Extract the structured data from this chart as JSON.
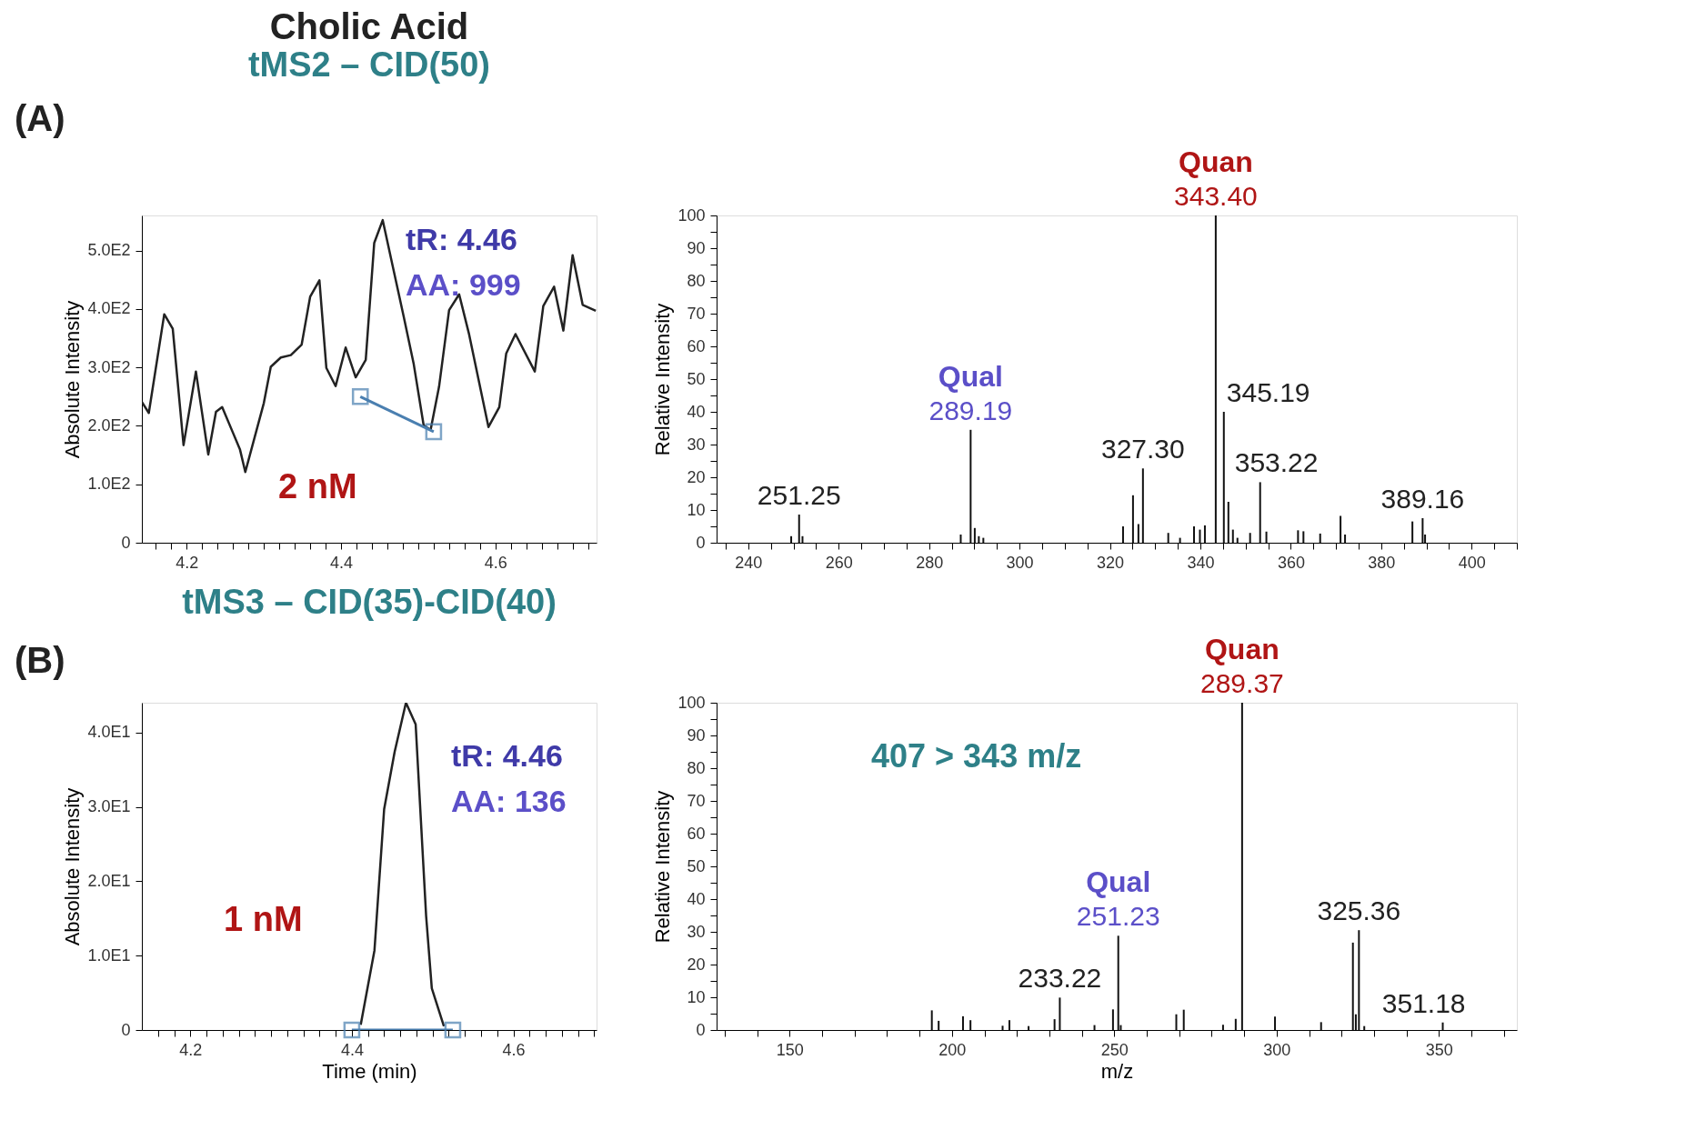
{
  "chart_data": [
    {
      "type": "line",
      "title": "Cholic Acid",
      "subtitle": "tMS2 – CID(50)",
      "ylabel": "Absolute Intensity",
      "annotations": [
        "(A)",
        "tR: 4.46",
        "AA: 999",
        "2 nM"
      ],
      "xlim": [
        4.142,
        4.731
      ],
      "ylim": [
        0,
        560
      ],
      "xticks": [
        {
          "value": 4.16,
          "label": null
        },
        {
          "value": 4.18,
          "label": null
        },
        4.2,
        {
          "value": 4.22,
          "label": null
        },
        {
          "value": 4.24,
          "label": null
        },
        {
          "value": 4.26,
          "label": null
        },
        {
          "value": 4.28,
          "label": null
        },
        {
          "value": 4.3,
          "label": null
        },
        {
          "value": 4.32,
          "label": null
        },
        {
          "value": 4.34,
          "label": null
        },
        {
          "value": 4.36,
          "label": null
        },
        {
          "value": 4.38,
          "label": null
        },
        4.4,
        {
          "value": 4.42,
          "label": null
        },
        {
          "value": 4.44,
          "label": null
        },
        {
          "value": 4.46,
          "label": null
        },
        {
          "value": 4.48,
          "label": null
        },
        {
          "value": 4.5,
          "label": null
        },
        {
          "value": 4.52,
          "label": null
        },
        {
          "value": 4.54,
          "label": null
        },
        {
          "value": 4.56,
          "label": null
        },
        {
          "value": 4.58,
          "label": null
        },
        4.6,
        {
          "value": 4.62,
          "label": null
        },
        {
          "value": 4.64,
          "label": null
        },
        {
          "value": 4.66,
          "label": null
        },
        {
          "value": 4.68,
          "label": null
        },
        {
          "value": 4.7,
          "label": null
        },
        {
          "value": 4.72,
          "label": null
        }
      ],
      "yticks": [
        0,
        {
          "value": 100,
          "label": "1.0E2"
        },
        {
          "value": 200,
          "label": "2.0E2"
        },
        {
          "value": 300,
          "label": "3.0E2"
        },
        {
          "value": 400,
          "label": "4.0E2"
        },
        {
          "value": 500,
          "label": "5.0E2"
        }
      ],
      "grid": false,
      "series": [
        {
          "color": "#222222",
          "x": [
            4.142,
            4.151,
            4.171,
            4.182,
            4.196,
            4.212,
            4.228,
            4.238,
            4.246,
            4.269,
            4.276,
            4.3,
            4.309,
            4.322,
            4.335,
            4.349,
            4.36,
            4.372,
            4.381,
            4.393,
            4.406,
            4.419,
            4.432,
            4.443,
            4.454,
            4.467,
            4.481,
            4.494,
            4.507,
            4.516,
            4.527,
            4.54,
            4.553,
            4.566,
            4.591,
            4.605,
            4.614,
            4.626,
            4.651,
            4.662,
            4.676,
            4.688,
            4.7,
            4.713,
            4.73
          ],
          "values": [
            241,
            222,
            391,
            366,
            167,
            293,
            151,
            224,
            232,
            160,
            121,
            239,
            301,
            317,
            321,
            339,
            421,
            449,
            299,
            268,
            334,
            283,
            313,
            513,
            552,
            473,
            388,
            307,
            201,
            193,
            267,
            398,
            425,
            356,
            198,
            232,
            324,
            357,
            293,
            405,
            438,
            363,
            492,
            407,
            397
          ]
        },
        {
          "color": "#4a7fb0",
          "marker": "square",
          "x": [
            4.425,
            4.52
          ],
          "values": [
            250,
            190
          ]
        }
      ]
    },
    {
      "type": "bar",
      "ylabel": "Relative Intensity",
      "annotations": [
        {
          "text": "Quan",
          "x": 343.4,
          "y": 100
        },
        {
          "text": "343.40",
          "x": 343.4,
          "y": 100
        },
        {
          "text": "Qual",
          "x": 289.19,
          "y": 34.5
        },
        {
          "text": "289.19",
          "x": 289.19,
          "y": 34.5
        },
        {
          "text": "251.25",
          "x": 251.25,
          "y": 8.6
        },
        {
          "text": "327.30",
          "x": 327.3,
          "y": 22.7
        },
        {
          "text": "345.19",
          "x": 345.19,
          "y": 40
        },
        {
          "text": "353.22",
          "x": 353.22,
          "y": 18.5
        },
        {
          "text": "389.16",
          "x": 389.16,
          "y": 7.5
        }
      ],
      "xlim": [
        233,
        410
      ],
      "ylim": [
        0,
        100
      ],
      "xticks": [
        {
          "value": 235,
          "label": null
        },
        240,
        {
          "value": 245,
          "label": null
        },
        {
          "value": 250,
          "label": null
        },
        {
          "value": 255,
          "label": null
        },
        260,
        {
          "value": 265,
          "label": null
        },
        {
          "value": 270,
          "label": null
        },
        {
          "value": 275,
          "label": null
        },
        280,
        {
          "value": 285,
          "label": null
        },
        {
          "value": 290,
          "label": null
        },
        {
          "value": 295,
          "label": null
        },
        300,
        {
          "value": 305,
          "label": null
        },
        {
          "value": 310,
          "label": null
        },
        {
          "value": 315,
          "label": null
        },
        320,
        {
          "value": 325,
          "label": null
        },
        {
          "value": 330,
          "label": null
        },
        {
          "value": 335,
          "label": null
        },
        340,
        {
          "value": 345,
          "label": null
        },
        {
          "value": 350,
          "label": null
        },
        {
          "value": 355,
          "label": null
        },
        360,
        {
          "value": 365,
          "label": null
        },
        {
          "value": 370,
          "label": null
        },
        {
          "value": 375,
          "label": null
        },
        380,
        {
          "value": 385,
          "label": null
        },
        {
          "value": 390,
          "label": null
        },
        {
          "value": 395,
          "label": null
        },
        400,
        {
          "value": 405,
          "label": null
        },
        {
          "value": 410,
          "label": null
        }
      ],
      "yticks": [
        0,
        {
          "value": 5,
          "label": null
        },
        10,
        {
          "value": 15,
          "label": null
        },
        20,
        {
          "value": 25,
          "label": null
        },
        30,
        {
          "value": 35,
          "label": null
        },
        40,
        {
          "value": 45,
          "label": null
        },
        50,
        {
          "value": 55,
          "label": null
        },
        60,
        {
          "value": 65,
          "label": null
        },
        70,
        {
          "value": 75,
          "label": null
        },
        80,
        {
          "value": 85,
          "label": null
        },
        90,
        {
          "value": 95,
          "label": null
        },
        100
      ],
      "grid": false,
      "series": [
        {
          "color": "#111111",
          "x": [
            249.5,
            251.25,
            252,
            287,
            289.19,
            290.1,
            291,
            292,
            322.9,
            325.1,
            326.3,
            327.3,
            332.9,
            335.5,
            338.6,
            339.9,
            341,
            343.4,
            345.19,
            346.2,
            347.2,
            348.2,
            351,
            353.22,
            354.6,
            361.6,
            362.8,
            366.5,
            371,
            372,
            386.9,
            389.16,
            389.7
          ],
          "values": [
            2,
            8.6,
            2,
            2.5,
            34.5,
            4.5,
            2,
            1.5,
            5,
            14.5,
            5.7,
            22.7,
            3,
            1.5,
            5,
            4,
            5.3,
            100,
            40,
            12.5,
            4,
            1.5,
            3,
            18.5,
            3.4,
            3.8,
            3.5,
            2.8,
            8.2,
            2.5,
            6.5,
            7.5,
            2.5
          ]
        }
      ]
    },
    {
      "type": "line",
      "subtitle": "tMS3 – CID(35)-CID(40)",
      "xlabel": "Time (min)",
      "ylabel": "Absolute Intensity",
      "annotations": [
        "(B)",
        "tR: 4.46",
        "AA: 136",
        "1 nM"
      ],
      "xlim": [
        4.14,
        4.703
      ],
      "ylim": [
        0,
        44
      ],
      "xticks": [
        {
          "value": 4.16,
          "label": null
        },
        {
          "value": 4.18,
          "label": null
        },
        4.2,
        {
          "value": 4.22,
          "label": null
        },
        {
          "value": 4.24,
          "label": null
        },
        {
          "value": 4.26,
          "label": null
        },
        {
          "value": 4.28,
          "label": null
        },
        {
          "value": 4.3,
          "label": null
        },
        {
          "value": 4.32,
          "label": null
        },
        {
          "value": 4.34,
          "label": null
        },
        {
          "value": 4.36,
          "label": null
        },
        {
          "value": 4.38,
          "label": null
        },
        4.4,
        {
          "value": 4.42,
          "label": null
        },
        {
          "value": 4.44,
          "label": null
        },
        {
          "value": 4.46,
          "label": null
        },
        {
          "value": 4.48,
          "label": null
        },
        {
          "value": 4.5,
          "label": null
        },
        {
          "value": 4.52,
          "label": null
        },
        {
          "value": 4.54,
          "label": null
        },
        {
          "value": 4.56,
          "label": null
        },
        {
          "value": 4.58,
          "label": null
        },
        4.6,
        {
          "value": 4.62,
          "label": null
        },
        {
          "value": 4.64,
          "label": null
        },
        {
          "value": 4.66,
          "label": null
        },
        {
          "value": 4.68,
          "label": null
        },
        {
          "value": 4.7,
          "label": null
        }
      ],
      "yticks": [
        0,
        {
          "value": 10,
          "label": "1.0E1"
        },
        {
          "value": 20,
          "label": "2.0E1"
        },
        {
          "value": 30,
          "label": "3.0E1"
        },
        {
          "value": 40,
          "label": "4.0E1"
        }
      ],
      "grid": false,
      "series": [
        {
          "color": "#222222",
          "x": [
            4.411,
            4.428,
            4.44,
            4.453,
            4.467,
            4.479,
            4.492,
            4.499,
            4.514
          ],
          "values": [
            0.7,
            10.7,
            29.7,
            37.4,
            44,
            41.1,
            15.3,
            5.6,
            0.5
          ]
        },
        {
          "color": "#4a7fb0",
          "marker": "square",
          "x": [
            4.4,
            4.525
          ],
          "values": [
            0,
            0
          ]
        }
      ]
    },
    {
      "type": "bar",
      "xlabel": "m/z",
      "ylabel": "Relative Intensity",
      "annotations": [
        "407 > 343 m/z",
        {
          "text": "Quan",
          "x": 289.37,
          "y": 100
        },
        {
          "text": "289.37",
          "x": 289.37,
          "y": 100
        },
        {
          "text": "Qual",
          "x": 251.23,
          "y": 28.8
        },
        {
          "text": "251.23",
          "x": 251.23,
          "y": 28.8
        },
        {
          "text": "233.22",
          "x": 233.22,
          "y": 9.9
        },
        {
          "text": "325.36",
          "x": 325.36,
          "y": 30.5
        },
        {
          "text": "351.18",
          "x": 351.18,
          "y": 2.3
        }
      ],
      "xlim": [
        127.5,
        374
      ],
      "ylim": [
        0,
        100
      ],
      "xticks": [
        {
          "value": 130,
          "label": null
        },
        {
          "value": 140,
          "label": null
        },
        150,
        {
          "value": 160,
          "label": null
        },
        {
          "value": 170,
          "label": null
        },
        {
          "value": 180,
          "label": null
        },
        {
          "value": 190,
          "label": null
        },
        200,
        {
          "value": 210,
          "label": null
        },
        {
          "value": 220,
          "label": null
        },
        {
          "value": 230,
          "label": null
        },
        {
          "value": 240,
          "label": null
        },
        250,
        {
          "value": 260,
          "label": null
        },
        {
          "value": 270,
          "label": null
        },
        {
          "value": 280,
          "label": null
        },
        {
          "value": 290,
          "label": null
        },
        300,
        {
          "value": 310,
          "label": null
        },
        {
          "value": 320,
          "label": null
        },
        {
          "value": 330,
          "label": null
        },
        {
          "value": 340,
          "label": null
        },
        350,
        {
          "value": 360,
          "label": null
        },
        {
          "value": 370,
          "label": null
        }
      ],
      "yticks": [
        0,
        {
          "value": 5,
          "label": null
        },
        10,
        {
          "value": 15,
          "label": null
        },
        20,
        {
          "value": 25,
          "label": null
        },
        30,
        {
          "value": 35,
          "label": null
        },
        40,
        {
          "value": 45,
          "label": null
        },
        50,
        {
          "value": 55,
          "label": null
        },
        60,
        {
          "value": 65,
          "label": null
        },
        70,
        {
          "value": 75,
          "label": null
        },
        80,
        {
          "value": 85,
          "label": null
        },
        90,
        {
          "value": 95,
          "label": null
        },
        100
      ],
      "grid": false,
      "series": [
        {
          "color": "#111111",
          "x": [
            193.8,
            195.9,
            203.4,
            205.7,
            215.6,
            217.7,
            223.6,
            231.6,
            233.22,
            243.9,
            249.6,
            251.23,
            252,
            269.1,
            271.4,
            283.5,
            287.4,
            289.37,
            299.5,
            313.7,
            323.5,
            324.4,
            325.36,
            327,
            351.18
          ],
          "values": [
            6,
            2.8,
            4.2,
            3,
            1.3,
            3,
            1.2,
            3.3,
            9.9,
            1.5,
            6.3,
            28.8,
            1.5,
            4.8,
            6.2,
            1.6,
            3.4,
            100,
            4.1,
            2.4,
            26.7,
            4.8,
            30.5,
            1.2,
            2.3
          ]
        }
      ]
    }
  ]
}
